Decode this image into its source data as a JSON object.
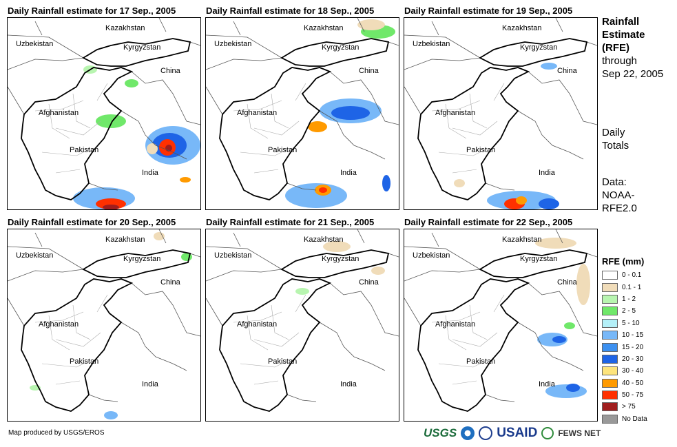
{
  "panels": [
    {
      "title": "Daily Rainfall estimate for 17 Sep., 2005"
    },
    {
      "title": "Daily Rainfall estimate for 18 Sep., 2005"
    },
    {
      "title": "Daily Rainfall estimate for 19 Sep., 2005"
    },
    {
      "title": "Daily Rainfall estimate for 20 Sep., 2005"
    },
    {
      "title": "Daily Rainfall estimate for 21 Sep., 2005"
    },
    {
      "title": "Daily Rainfall estimate for 22 Sep., 2005"
    }
  ],
  "map_labels": {
    "kazakhstan": "Kazakhstan",
    "uzbekistan": "Uzbekistan",
    "kyrgyzstan": "Kyrgyzstan",
    "china": "China",
    "afghanistan": "Afghanistan",
    "pakistan": "Pakistan",
    "india": "India"
  },
  "side": {
    "line1": "Rainfall",
    "line2": "Estimate",
    "line3": "(RFE)",
    "line4": "through",
    "line5": "Sep 22, 2005",
    "totals1": "Daily",
    "totals2": "Totals",
    "data1": "Data:",
    "data2": "NOAA-",
    "data3": "RFE2.0"
  },
  "legend": {
    "title": "RFE (mm)",
    "items": [
      {
        "label": "0 - 0.1",
        "color": "#ffffff"
      },
      {
        "label": "0.1 - 1",
        "color": "#f0dcb9"
      },
      {
        "label": "1 - 2",
        "color": "#b8f5b0"
      },
      {
        "label": "2 - 5",
        "color": "#70e86a"
      },
      {
        "label": "5 - 10",
        "color": "#b4f0f8"
      },
      {
        "label": "10 - 15",
        "color": "#78b8f8"
      },
      {
        "label": "15 - 20",
        "color": "#3c90f0"
      },
      {
        "label": "20 - 30",
        "color": "#1e64e6"
      },
      {
        "label": "30 - 40",
        "color": "#fde47c"
      },
      {
        "label": "40 - 50",
        "color": "#ff9a00"
      },
      {
        "label": "50 - 75",
        "color": "#ff3000"
      },
      {
        "label": "> 75",
        "color": "#a01e1e"
      },
      {
        "label": "No Data",
        "color": "#999999"
      }
    ]
  },
  "credit": "Map produced by USGS/EROS",
  "logos": {
    "usgs": "USGS",
    "usaid": "USAID",
    "fews": "FEWS NET"
  }
}
